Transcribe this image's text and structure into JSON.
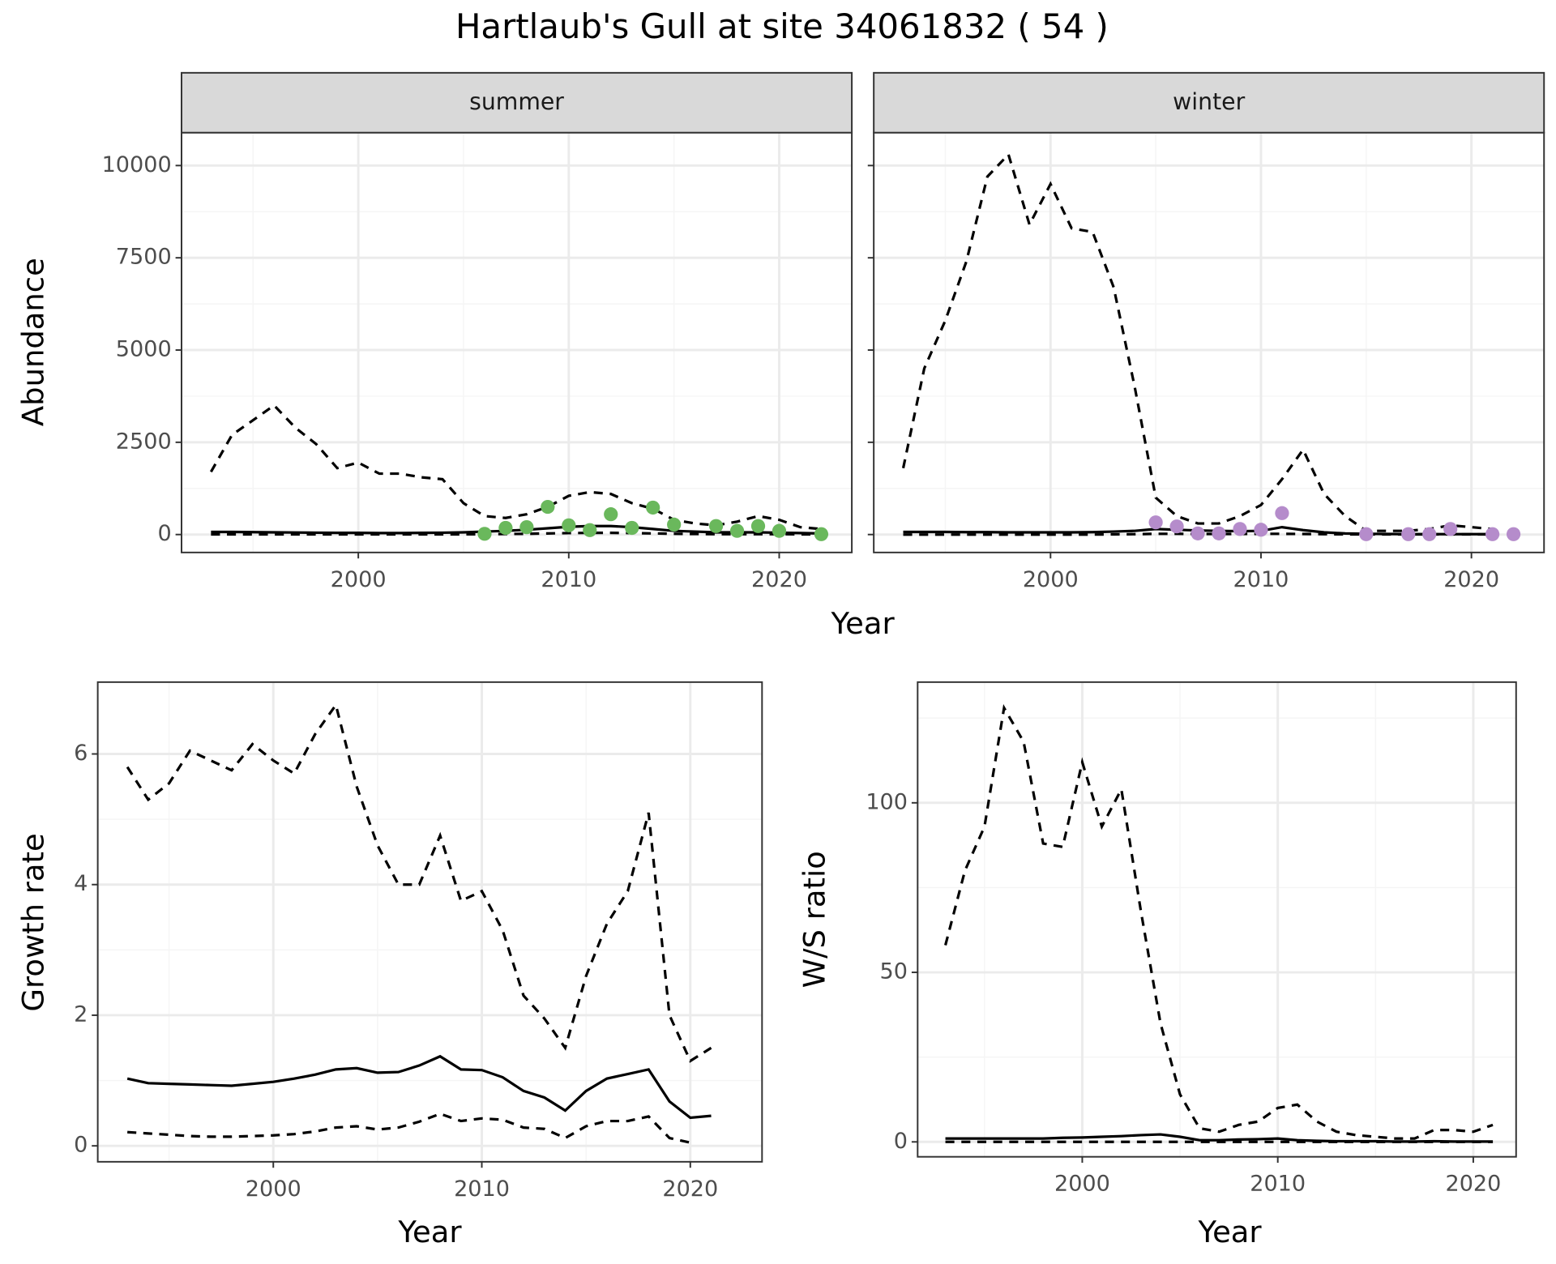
{
  "title": "Hartlaub's Gull at site 34061832 ( 54 )",
  "chart_data": [
    {
      "type": "line",
      "strip": "summer",
      "xlabel": "Year",
      "ylabel": "Abundance",
      "x": [
        1993,
        1994,
        1995,
        1996,
        1997,
        1998,
        1999,
        2000,
        2001,
        2002,
        2003,
        2004,
        2005,
        2006,
        2007,
        2008,
        2009,
        2010,
        2011,
        2012,
        2013,
        2014,
        2015,
        2016,
        2017,
        2018,
        2019,
        2020,
        2021,
        2022
      ],
      "xlim": [
        1991.6,
        2023.45
      ],
      "xticks": [
        2000,
        2010,
        2020
      ],
      "xminor": [
        1995,
        2005,
        2015
      ],
      "ylim": [
        -486,
        10892
      ],
      "yticks": [
        0,
        2500,
        5000,
        7500,
        10000
      ],
      "yminor": [
        1250,
        3750,
        6250,
        8750
      ],
      "show_yticklabels": true,
      "grid": true,
      "series": [
        {
          "linetype": "dashed",
          "color": "#000000",
          "values": [
            1700,
            2700,
            3100,
            3500,
            2900,
            2450,
            1800,
            1950,
            1650,
            1650,
            1550,
            1500,
            850,
            500,
            450,
            550,
            750,
            1050,
            1150,
            1100,
            850,
            700,
            400,
            300,
            250,
            350,
            500,
            400,
            200,
            150
          ]
        },
        {
          "linetype": "solid",
          "color": "#000000",
          "values": [
            70,
            70,
            65,
            60,
            55,
            50,
            45,
            45,
            40,
            40,
            45,
            50,
            60,
            80,
            100,
            130,
            170,
            210,
            230,
            230,
            200,
            150,
            100,
            80,
            60,
            60,
            60,
            50,
            40,
            30
          ]
        },
        {
          "linetype": "dashed",
          "color": "#000000",
          "values": [
            5,
            5,
            5,
            5,
            5,
            5,
            5,
            5,
            5,
            5,
            5,
            5,
            5,
            10,
            15,
            20,
            30,
            40,
            45,
            45,
            40,
            30,
            20,
            15,
            10,
            10,
            10,
            10,
            5,
            5
          ]
        },
        {
          "mark": "point",
          "color": "#6ab85c",
          "values": [
            null,
            null,
            null,
            null,
            null,
            null,
            null,
            null,
            null,
            null,
            null,
            null,
            null,
            20,
            180,
            200,
            750,
            250,
            120,
            550,
            180,
            730,
            270,
            null,
            230,
            100,
            230,
            100,
            null,
            10
          ]
        }
      ]
    },
    {
      "type": "line",
      "strip": "winter",
      "x": [
        1993,
        1994,
        1995,
        1996,
        1997,
        1998,
        1999,
        2000,
        2001,
        2002,
        2003,
        2004,
        2005,
        2006,
        2007,
        2008,
        2009,
        2010,
        2011,
        2012,
        2013,
        2014,
        2015,
        2016,
        2017,
        2018,
        2019,
        2020,
        2021,
        2022
      ],
      "xlim": [
        1991.6,
        2023.45
      ],
      "xticks": [
        2000,
        2010,
        2020
      ],
      "xminor": [
        1995,
        2005,
        2015
      ],
      "ylim": [
        -486,
        10892
      ],
      "yticks": [
        0,
        2500,
        5000,
        7500,
        10000
      ],
      "yminor": [
        1250,
        3750,
        6250,
        8750
      ],
      "show_yticklabels": false,
      "grid": true,
      "series": [
        {
          "linetype": "dashed",
          "color": "#000000",
          "values": [
            1800,
            4500,
            5800,
            7400,
            9700,
            10300,
            8400,
            9500,
            8300,
            8200,
            6700,
            4000,
            1000,
            500,
            300,
            300,
            500,
            800,
            1500,
            2300,
            1100,
            500,
            100,
            100,
            100,
            150,
            250,
            200,
            150,
            null
          ]
        },
        {
          "linetype": "solid",
          "color": "#000000",
          "values": [
            70,
            70,
            70,
            65,
            65,
            60,
            60,
            60,
            60,
            65,
            80,
            100,
            150,
            130,
            110,
            100,
            90,
            100,
            200,
            120,
            60,
            30,
            20,
            15,
            10,
            10,
            10,
            10,
            10,
            null
          ]
        },
        {
          "linetype": "dashed",
          "color": "#000000",
          "values": [
            0,
            0,
            0,
            0,
            0,
            0,
            0,
            0,
            0,
            0,
            5,
            10,
            20,
            20,
            15,
            15,
            15,
            20,
            20,
            15,
            10,
            5,
            5,
            5,
            5,
            5,
            5,
            5,
            5,
            null
          ]
        },
        {
          "mark": "point",
          "color": "#b58ccb",
          "values": [
            null,
            null,
            null,
            null,
            null,
            null,
            null,
            null,
            null,
            null,
            null,
            null,
            330,
            220,
            30,
            30,
            150,
            130,
            580,
            null,
            null,
            null,
            10,
            null,
            10,
            10,
            150,
            null,
            10,
            10
          ]
        }
      ]
    },
    {
      "type": "line",
      "xlabel": "Year",
      "ylabel": "Growth rate",
      "x": [
        1993,
        1994,
        1995,
        1996,
        1997,
        1998,
        1999,
        2000,
        2001,
        2002,
        2003,
        2004,
        2005,
        2006,
        2007,
        2008,
        2009,
        2010,
        2011,
        2012,
        2013,
        2014,
        2015,
        2016,
        2017,
        2018,
        2019,
        2020,
        2021
      ],
      "xlim": [
        1991.58,
        2023.44
      ],
      "xticks": [
        2000,
        2010,
        2020
      ],
      "xminor": [
        1995,
        2005,
        2015
      ],
      "ylim": [
        -0.244,
        7.1
      ],
      "yticks": [
        0,
        2,
        4,
        6
      ],
      "yminor": [
        1,
        3,
        5
      ],
      "show_yticklabels": true,
      "grid": true,
      "series": [
        {
          "linetype": "dashed",
          "color": "#000000",
          "values": [
            5.8,
            5.3,
            5.55,
            6.05,
            5.9,
            5.75,
            6.15,
            5.9,
            5.7,
            6.3,
            6.75,
            5.5,
            4.6,
            4.0,
            4.0,
            4.75,
            3.75,
            3.9,
            3.3,
            2.3,
            1.95,
            1.5,
            2.6,
            3.4,
            3.9,
            5.1,
            2.0,
            1.3,
            1.5
          ]
        },
        {
          "linetype": "solid",
          "color": "#000000",
          "values": [
            1.03,
            0.96,
            0.95,
            0.94,
            0.93,
            0.92,
            0.95,
            0.98,
            1.03,
            1.09,
            1.17,
            1.19,
            1.12,
            1.13,
            1.23,
            1.37,
            1.17,
            1.16,
            1.05,
            0.84,
            0.74,
            0.54,
            0.84,
            1.03,
            1.1,
            1.17,
            0.68,
            0.43,
            0.46
          ]
        },
        {
          "linetype": "dashed",
          "color": "#000000",
          "values": [
            0.21,
            0.19,
            0.17,
            0.15,
            0.14,
            0.14,
            0.15,
            0.16,
            0.18,
            0.22,
            0.28,
            0.3,
            0.25,
            0.28,
            0.37,
            0.49,
            0.38,
            0.42,
            0.4,
            0.28,
            0.26,
            0.12,
            0.3,
            0.38,
            0.38,
            0.45,
            0.12,
            0.05,
            null
          ]
        }
      ]
    },
    {
      "type": "line",
      "xlabel": "Year",
      "ylabel": "W/S ratio",
      "x": [
        1993,
        1994,
        1995,
        1996,
        1997,
        1998,
        1999,
        2000,
        2001,
        2002,
        2003,
        2004,
        2005,
        2006,
        2007,
        2008,
        2009,
        2010,
        2011,
        2012,
        2013,
        2014,
        2015,
        2016,
        2017,
        2018,
        2019,
        2020,
        2021
      ],
      "xlim": [
        1991.58,
        2022.19
      ],
      "xticks": [
        2000,
        2010,
        2020
      ],
      "xminor": [
        1995,
        2005,
        2015
      ],
      "ylim": [
        -4.4,
        135.6
      ],
      "yticks": [
        0,
        50,
        100
      ],
      "yminor": [
        25,
        75,
        125
      ],
      "show_yticklabels": true,
      "grid": true,
      "series": [
        {
          "linetype": "dashed",
          "color": "#000000",
          "values": [
            58,
            80,
            93,
            128,
            118,
            88,
            87,
            112,
            93,
            104,
            68,
            35,
            14,
            4,
            3,
            5,
            6,
            10,
            11,
            6,
            3,
            2,
            1.5,
            1,
            1,
            3.5,
            3.5,
            3,
            5
          ]
        },
        {
          "linetype": "solid",
          "color": "#000000",
          "values": [
            1,
            1,
            1,
            1,
            1,
            1,
            1.2,
            1.3,
            1.5,
            1.7,
            2,
            2.2,
            1.5,
            0.5,
            0.5,
            0.7,
            0.8,
            1,
            0.5,
            0.3,
            0.2,
            0.2,
            0.2,
            0.1,
            0.1,
            0.2,
            0.1,
            0.1,
            0.1
          ]
        },
        {
          "linetype": "dashed",
          "color": "#000000",
          "values": [
            0,
            0,
            0,
            0,
            0,
            0,
            0,
            0,
            0,
            0,
            0,
            0,
            0,
            0,
            0,
            0,
            0,
            0,
            0,
            0,
            0,
            0,
            0,
            0,
            0,
            0,
            0,
            0,
            0
          ]
        }
      ]
    }
  ]
}
